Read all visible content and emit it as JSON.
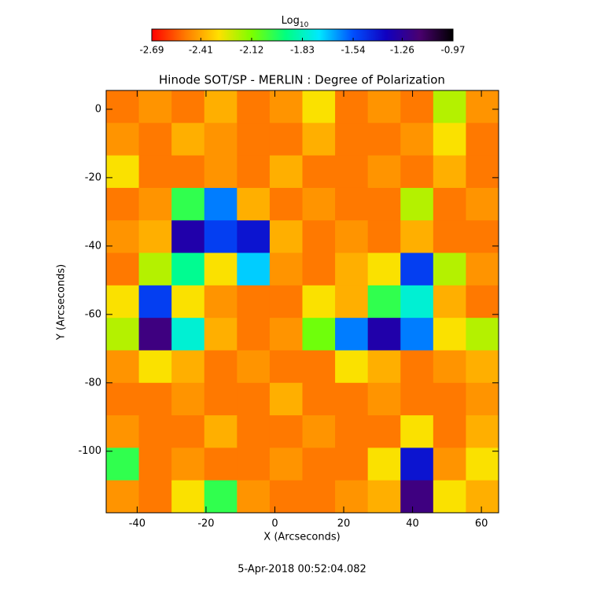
{
  "chart_data": {
    "type": "heatmap",
    "title": "Hinode SOT/SP - MERLIN : Degree of Polarization",
    "xlabel": "X (Arcseconds)",
    "ylabel": "Y (Arcseconds)",
    "footer": "5-Apr-2018 00:52:04.082",
    "colorbar_label": "Log",
    "colorbar_label_sub": "10",
    "colormap": [
      "#ff0000",
      "#ff7a00",
      "#ffe000",
      "#7aff00",
      "#00ff80",
      "#00e8ff",
      "#0050ff",
      "#1000c0",
      "#4a0070",
      "#000000"
    ],
    "zlim": [
      -2.69,
      -0.97
    ],
    "zticks": [
      -2.69,
      -2.41,
      -2.12,
      -1.83,
      -1.54,
      -1.26,
      -0.97
    ],
    "xlim": [
      -49,
      65
    ],
    "ylim": [
      -118,
      5.5
    ],
    "xticks": [
      -40,
      -20,
      0,
      20,
      40,
      60
    ],
    "yticks": [
      0,
      -20,
      -40,
      -60,
      -80,
      -100
    ],
    "x": [
      -44.25,
      -34.75,
      -25.25,
      -15.75,
      -6.25,
      3.25,
      12.75,
      22.25,
      31.75,
      41.25,
      50.75,
      60.25
    ],
    "y": [
      0.75,
      -8.75,
      -18.25,
      -27.75,
      -37.25,
      -46.75,
      -56.25,
      -65.75,
      -75.25,
      -84.75,
      -94.25,
      -103.75,
      -113.25
    ],
    "z": [
      [
        -2.5,
        -2.45,
        -2.5,
        -2.4,
        -2.5,
        -2.45,
        -2.3,
        -2.5,
        -2.45,
        -2.5,
        -2.2,
        -2.45
      ],
      [
        -2.45,
        -2.5,
        -2.4,
        -2.45,
        -2.5,
        -2.5,
        -2.4,
        -2.5,
        -2.5,
        -2.45,
        -2.3,
        -2.5
      ],
      [
        -2.3,
        -2.5,
        -2.5,
        -2.45,
        -2.5,
        -2.4,
        -2.5,
        -2.5,
        -2.45,
        -2.5,
        -2.4,
        -2.5
      ],
      [
        -2.5,
        -2.45,
        -2.0,
        -1.6,
        -2.4,
        -2.5,
        -2.45,
        -2.5,
        -2.5,
        -2.2,
        -2.5,
        -2.45
      ],
      [
        -2.45,
        -2.4,
        -1.3,
        -1.5,
        -1.4,
        -2.4,
        -2.5,
        -2.45,
        -2.5,
        -2.4,
        -2.5,
        -2.5
      ],
      [
        -2.5,
        -2.2,
        -1.9,
        -2.3,
        -1.7,
        -2.45,
        -2.5,
        -2.4,
        -2.3,
        -1.5,
        -2.2,
        -2.45
      ],
      [
        -2.3,
        -1.5,
        -2.3,
        -2.45,
        -2.5,
        -2.5,
        -2.3,
        -2.4,
        -2.0,
        -1.8,
        -2.4,
        -2.5
      ],
      [
        -2.2,
        -1.2,
        -1.8,
        -2.4,
        -2.5,
        -2.45,
        -2.1,
        -1.6,
        -1.3,
        -1.6,
        -2.3,
        -2.2
      ],
      [
        -2.45,
        -2.3,
        -2.4,
        -2.5,
        -2.45,
        -2.5,
        -2.5,
        -2.3,
        -2.4,
        -2.5,
        -2.45,
        -2.4
      ],
      [
        -2.5,
        -2.5,
        -2.45,
        -2.5,
        -2.5,
        -2.4,
        -2.5,
        -2.5,
        -2.45,
        -2.5,
        -2.5,
        -2.45
      ],
      [
        -2.45,
        -2.5,
        -2.5,
        -2.4,
        -2.5,
        -2.5,
        -2.45,
        -2.5,
        -2.5,
        -2.3,
        -2.5,
        -2.4
      ],
      [
        -2.0,
        -2.5,
        -2.45,
        -2.5,
        -2.5,
        -2.45,
        -2.5,
        -2.5,
        -2.3,
        -1.4,
        -2.45,
        -2.3
      ],
      [
        -2.45,
        -2.5,
        -2.3,
        -2.0,
        -2.45,
        -2.5,
        -2.5,
        -2.45,
        -2.4,
        -1.2,
        -2.3,
        -2.4
      ]
    ]
  }
}
